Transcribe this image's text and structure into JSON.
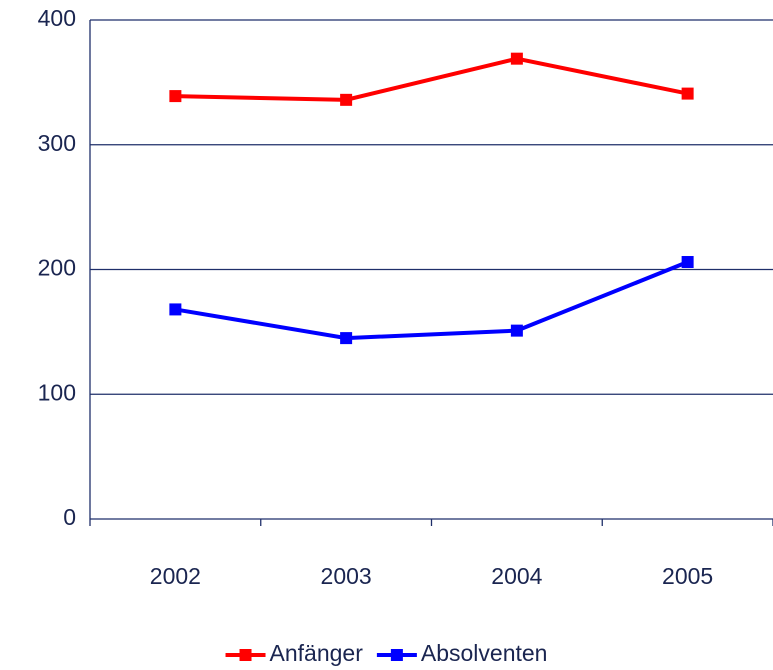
{
  "chart_data": {
    "type": "line",
    "categories": [
      "2002",
      "2003",
      "2004",
      "2005"
    ],
    "series": [
      {
        "name": "Anfänger",
        "color": "#ff0000",
        "values": [
          339,
          336,
          369,
          341
        ]
      },
      {
        "name": "Absolventen",
        "color": "#0000ff",
        "values": [
          168,
          145,
          151,
          206
        ]
      }
    ],
    "ylim": [
      0,
      400
    ],
    "yticks": [
      0,
      100,
      200,
      300,
      400
    ],
    "grid": true,
    "legend": "bottom"
  }
}
